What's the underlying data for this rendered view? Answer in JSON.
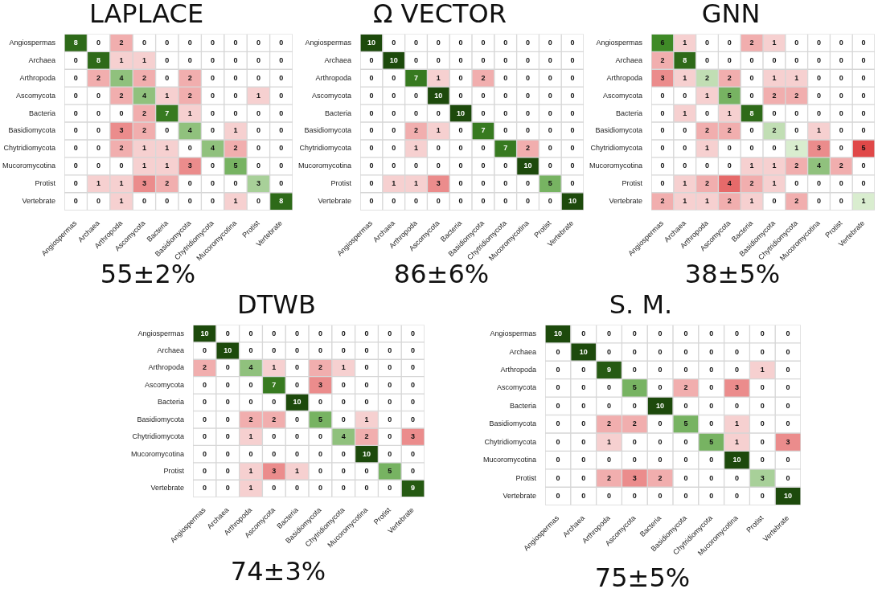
{
  "chart_data": [
    {
      "type": "heatmap",
      "title": "LAPLACE",
      "annotations": [
        "55±2%"
      ],
      "data_labels": true,
      "categories": [
        "Angiospermas",
        "Archaea",
        "Arthropoda",
        "Ascomycota",
        "Bacteria",
        "Basidiomycota",
        "Chytridiomycota",
        "Mucoromycotina",
        "Protist",
        "Vertebrate"
      ],
      "y_categories": [
        "Angiospermas",
        "Archaea",
        "Arthropoda",
        "Ascomycota",
        "Bacteria",
        "Basidiomycota",
        "Chytridiomycota",
        "Mucoromycotina",
        "Protist",
        "Vertebrate"
      ],
      "cells": [
        [
          8,
          0,
          2,
          0,
          0,
          0,
          0,
          0,
          0,
          0
        ],
        [
          0,
          8,
          1,
          1,
          0,
          0,
          0,
          0,
          0,
          0
        ],
        [
          0,
          2,
          4,
          2,
          0,
          2,
          0,
          0,
          0,
          0
        ],
        [
          0,
          0,
          2,
          4,
          1,
          2,
          0,
          0,
          1,
          0
        ],
        [
          0,
          0,
          0,
          2,
          7,
          1,
          0,
          0,
          0,
          0
        ],
        [
          0,
          0,
          3,
          2,
          0,
          4,
          0,
          1,
          0,
          0
        ],
        [
          0,
          0,
          2,
          1,
          1,
          0,
          4,
          2,
          0,
          0
        ],
        [
          0,
          0,
          0,
          1,
          1,
          3,
          0,
          5,
          0,
          0
        ],
        [
          0,
          1,
          1,
          3,
          2,
          0,
          0,
          0,
          3,
          0
        ],
        [
          0,
          0,
          1,
          0,
          0,
          0,
          0,
          1,
          0,
          8
        ]
      ]
    },
    {
      "type": "heatmap",
      "title": "Ω VECTOR",
      "annotations": [
        "86±6%"
      ],
      "data_labels": true,
      "categories": [
        "Angiospermas",
        "Archaea",
        "Arthropoda",
        "Ascomycota",
        "Bacteria",
        "Basidiomycota",
        "Chytridiomycota",
        "Mucoromycotina",
        "Protist",
        "Vertebrate"
      ],
      "y_categories": [
        "Angiospermas",
        "Archaea",
        "Arthropoda",
        "Ascomycota",
        "Bacteria",
        "Basidiomycota",
        "Chytridiomycota",
        "Mucoromycotina",
        "Protist",
        "Vertebrate"
      ],
      "cells": [
        [
          10,
          0,
          0,
          0,
          0,
          0,
          0,
          0,
          0,
          0
        ],
        [
          0,
          10,
          0,
          0,
          0,
          0,
          0,
          0,
          0,
          0
        ],
        [
          0,
          0,
          7,
          1,
          0,
          2,
          0,
          0,
          0,
          0
        ],
        [
          0,
          0,
          0,
          10,
          0,
          0,
          0,
          0,
          0,
          0
        ],
        [
          0,
          0,
          0,
          0,
          10,
          0,
          0,
          0,
          0,
          0
        ],
        [
          0,
          0,
          2,
          1,
          0,
          7,
          0,
          0,
          0,
          0
        ],
        [
          0,
          0,
          1,
          0,
          0,
          0,
          7,
          2,
          0,
          0
        ],
        [
          0,
          0,
          0,
          0,
          0,
          0,
          0,
          10,
          0,
          0
        ],
        [
          0,
          1,
          1,
          3,
          0,
          0,
          0,
          0,
          5,
          0
        ],
        [
          0,
          0,
          0,
          0,
          0,
          0,
          0,
          0,
          0,
          10
        ]
      ]
    },
    {
      "type": "heatmap",
      "title": "GNN",
      "annotations": [
        "38±5%"
      ],
      "data_labels": true,
      "categories": [
        "Angiospermas",
        "Archaea",
        "Arthropoda",
        "Ascomycota",
        "Bacteria",
        "Basidiomycota",
        "Chytridiomycota",
        "Mucoromycotina",
        "Protist",
        "Vertebrate"
      ],
      "y_categories": [
        "Angiospermas",
        "Archaea",
        "Arthropoda",
        "Ascomycota",
        "Bacteria",
        "Basidiomycota",
        "Chytridiomycota",
        "Mucoromycotina",
        "Protist",
        "Vertebrate"
      ],
      "cells": [
        [
          6,
          1,
          0,
          0,
          2,
          1,
          0,
          0,
          0,
          0
        ],
        [
          2,
          8,
          0,
          0,
          0,
          0,
          0,
          0,
          0,
          0
        ],
        [
          3,
          1,
          2,
          2,
          0,
          1,
          1,
          0,
          0,
          0
        ],
        [
          0,
          0,
          1,
          5,
          0,
          2,
          2,
          0,
          0,
          0
        ],
        [
          0,
          1,
          0,
          1,
          8,
          0,
          0,
          0,
          0,
          0
        ],
        [
          0,
          0,
          2,
          2,
          0,
          2,
          0,
          1,
          0,
          0
        ],
        [
          0,
          0,
          1,
          0,
          0,
          0,
          1,
          3,
          0,
          5
        ],
        [
          0,
          0,
          0,
          0,
          1,
          1,
          2,
          4,
          2,
          0
        ],
        [
          0,
          1,
          2,
          4,
          2,
          1,
          0,
          0,
          0,
          0
        ],
        [
          2,
          1,
          1,
          2,
          1,
          0,
          2,
          0,
          0,
          1
        ]
      ]
    },
    {
      "type": "heatmap",
      "title": "DTWB",
      "annotations": [
        "74±3%"
      ],
      "data_labels": true,
      "categories": [
        "Angiospermas",
        "Archaea",
        "Arthropoda",
        "Ascomycota",
        "Bacteria",
        "Basidiomycota",
        "Chytridiomycota",
        "Mucoromycotina",
        "Protist",
        "Vertebrate"
      ],
      "y_categories": [
        "Angiospermas",
        "Archaea",
        "Arthropoda",
        "Ascomycota",
        "Bacteria",
        "Basidiomycota",
        "Chytridiomycota",
        "Mucoromycotina",
        "Protist",
        "Vertebrate"
      ],
      "cells": [
        [
          10,
          0,
          0,
          0,
          0,
          0,
          0,
          0,
          0,
          0
        ],
        [
          0,
          10,
          0,
          0,
          0,
          0,
          0,
          0,
          0,
          0
        ],
        [
          2,
          0,
          4,
          1,
          0,
          2,
          1,
          0,
          0,
          0
        ],
        [
          0,
          0,
          0,
          7,
          0,
          3,
          0,
          0,
          0,
          0
        ],
        [
          0,
          0,
          0,
          0,
          10,
          0,
          0,
          0,
          0,
          0
        ],
        [
          0,
          0,
          2,
          2,
          0,
          5,
          0,
          1,
          0,
          0
        ],
        [
          0,
          0,
          1,
          0,
          0,
          0,
          4,
          2,
          0,
          3
        ],
        [
          0,
          0,
          0,
          0,
          0,
          0,
          0,
          10,
          0,
          0
        ],
        [
          0,
          0,
          1,
          3,
          1,
          0,
          0,
          0,
          5,
          0
        ],
        [
          0,
          0,
          1,
          0,
          0,
          0,
          0,
          0,
          0,
          9
        ]
      ]
    },
    {
      "type": "heatmap",
      "title": "S. M.",
      "annotations": [
        "75±5%"
      ],
      "data_labels": true,
      "categories": [
        "Angiospermas",
        "Archaea",
        "Arthropoda",
        "Ascomycota",
        "Bacteria",
        "Basidiomycota",
        "Chytridiomycota",
        "Mucoromycotina",
        "Protist",
        "Vertebrate"
      ],
      "y_categories": [
        "Angiospermas",
        "Archaea",
        "Arthropoda",
        "Ascomycota",
        "Bacteria",
        "Basidiomycota",
        "Chytridiomycota",
        "Mucoromycotina",
        "Protist",
        "Vertebrate"
      ],
      "cells": [
        [
          10,
          0,
          0,
          0,
          0,
          0,
          0,
          0,
          0,
          0
        ],
        [
          0,
          10,
          0,
          0,
          0,
          0,
          0,
          0,
          0,
          0
        ],
        [
          0,
          0,
          9,
          0,
          0,
          0,
          0,
          0,
          1,
          0
        ],
        [
          0,
          0,
          0,
          5,
          0,
          2,
          0,
          3,
          0,
          0
        ],
        [
          0,
          0,
          0,
          0,
          10,
          0,
          0,
          0,
          0,
          0
        ],
        [
          0,
          0,
          2,
          2,
          0,
          5,
          0,
          1,
          0,
          0
        ],
        [
          0,
          0,
          1,
          0,
          0,
          0,
          5,
          1,
          0,
          3
        ],
        [
          0,
          0,
          0,
          0,
          0,
          0,
          0,
          10,
          0,
          0
        ],
        [
          0,
          0,
          2,
          3,
          2,
          0,
          0,
          0,
          3,
          0
        ],
        [
          0,
          0,
          0,
          0,
          0,
          0,
          0,
          0,
          0,
          10
        ]
      ]
    }
  ]
}
